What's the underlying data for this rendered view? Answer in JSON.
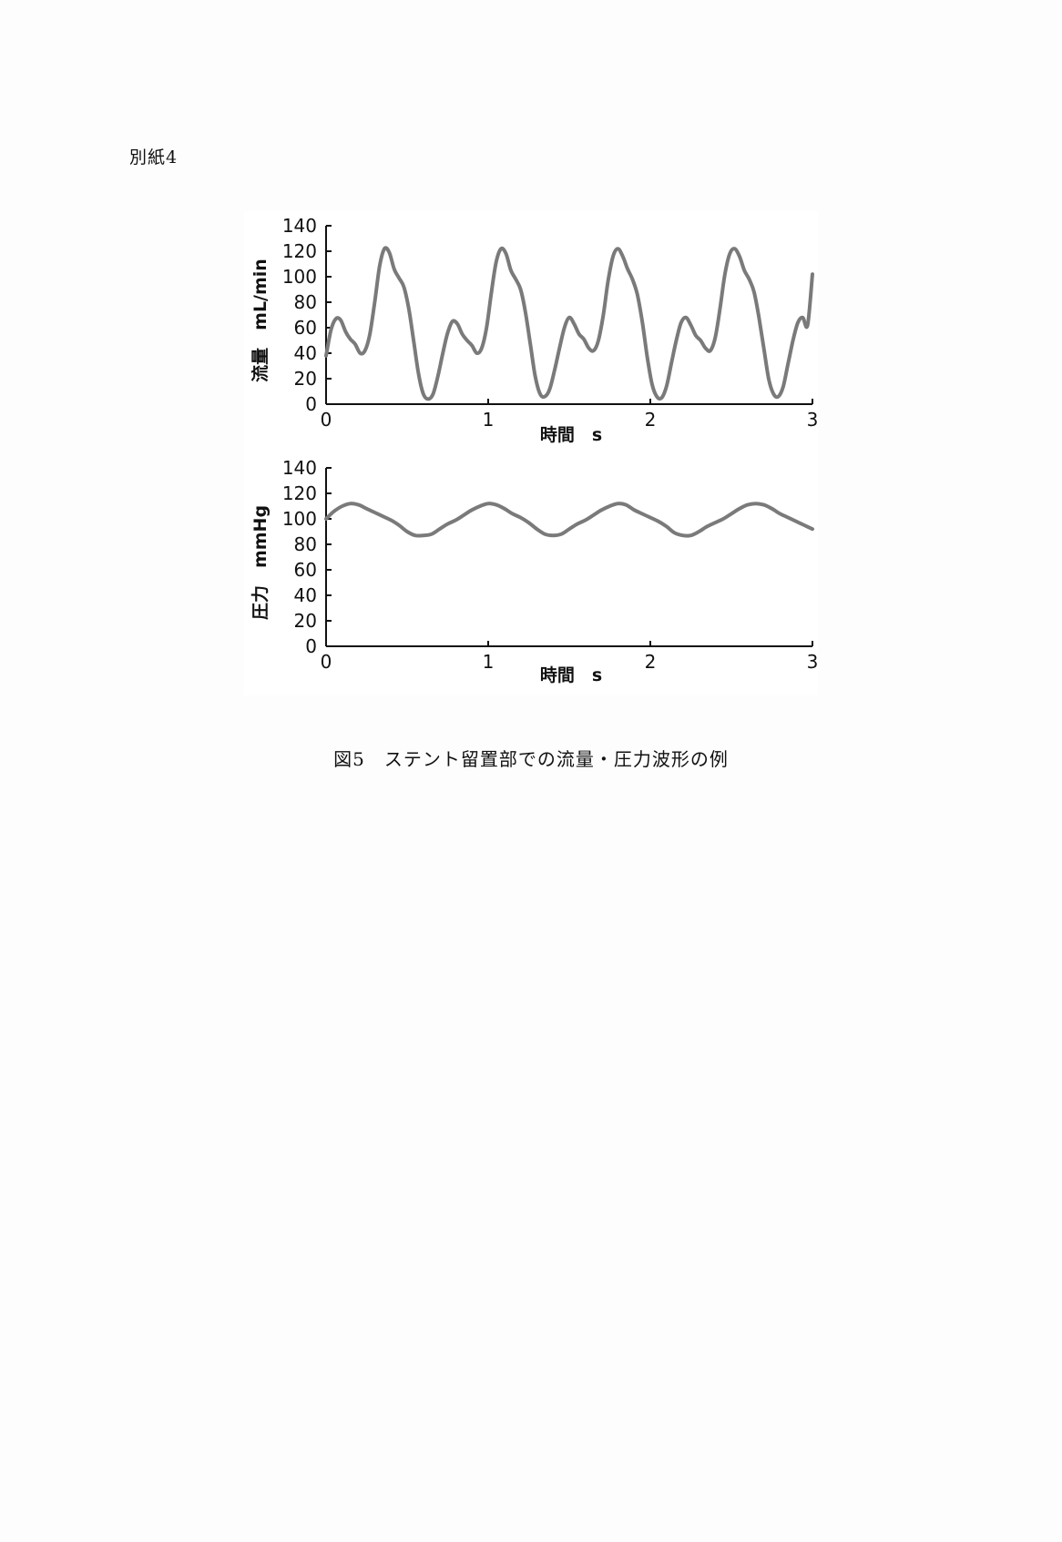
{
  "page": {
    "label": "別紙4"
  },
  "caption": {
    "text": "図5　ステント留置部での流量・圧力波形の例"
  },
  "colors": {
    "line": "#7a7a7a",
    "axis": "#111111"
  },
  "chart_data": [
    {
      "type": "line",
      "title": "",
      "xlabel": "時間　s",
      "ylabel": "流量　mL/min",
      "xlim": [
        0,
        3
      ],
      "ylim": [
        0,
        140
      ],
      "xticks": [
        0,
        1,
        2,
        3
      ],
      "yticks": [
        0,
        20,
        40,
        60,
        80,
        100,
        120,
        140
      ],
      "grid": false,
      "legend": "none",
      "series": [
        {
          "x": [
            0,
            0.03,
            0.06,
            0.09,
            0.12,
            0.15,
            0.18,
            0.21,
            0.24,
            0.27,
            0.3,
            0.33,
            0.36,
            0.39,
            0.42,
            0.45,
            0.48,
            0.51,
            0.54,
            0.57,
            0.6,
            0.63,
            0.66,
            0.69,
            0.72,
            0.75,
            0.78,
            0.81,
            0.84,
            0.87,
            0.9,
            0.93,
            0.96,
            0.99,
            1.02,
            1.05,
            1.08,
            1.11,
            1.14,
            1.17,
            1.2,
            1.23,
            1.26,
            1.29,
            1.32,
            1.35,
            1.38,
            1.41,
            1.44,
            1.47,
            1.5,
            1.53,
            1.56,
            1.59,
            1.62,
            1.65,
            1.68,
            1.71,
            1.74,
            1.77,
            1.8,
            1.83,
            1.86,
            1.89,
            1.92,
            1.95,
            1.98,
            2.01,
            2.04,
            2.07,
            2.1,
            2.13,
            2.16,
            2.19,
            2.22,
            2.25,
            2.28,
            2.31,
            2.34,
            2.37,
            2.4,
            2.43,
            2.46,
            2.49,
            2.52,
            2.55,
            2.58,
            2.61,
            2.64,
            2.67,
            2.7,
            2.73,
            2.76,
            2.79,
            2.82,
            2.85,
            2.88,
            2.91,
            2.94,
            2.97,
            3.0
          ],
          "y": [
            38,
            58,
            67,
            66,
            57,
            51,
            47,
            40,
            42,
            55,
            80,
            108,
            122,
            119,
            106,
            99,
            92,
            75,
            50,
            24,
            8,
            4,
            8,
            22,
            40,
            56,
            65,
            63,
            55,
            50,
            46,
            40,
            44,
            60,
            88,
            112,
            122,
            118,
            105,
            98,
            90,
            72,
            47,
            22,
            8,
            6,
            12,
            27,
            44,
            60,
            68,
            63,
            55,
            51,
            44,
            42,
            50,
            70,
            97,
            116,
            122,
            116,
            106,
            98,
            86,
            65,
            38,
            16,
            6,
            5,
            14,
            32,
            50,
            64,
            68,
            62,
            54,
            50,
            44,
            42,
            52,
            75,
            102,
            118,
            122,
            116,
            105,
            98,
            88,
            68,
            44,
            20,
            8,
            6,
            14,
            32,
            50,
            64,
            68,
            62,
            102
          ]
        }
      ]
    },
    {
      "type": "line",
      "title": "",
      "xlabel": "時間　s",
      "ylabel": "圧力　mmHg",
      "xlim": [
        0,
        3
      ],
      "ylim": [
        0,
        140
      ],
      "xticks": [
        0,
        1,
        2,
        3
      ],
      "yticks": [
        0,
        20,
        40,
        60,
        80,
        100,
        120,
        140
      ],
      "grid": false,
      "legend": "none",
      "series": [
        {
          "x": [
            0,
            0.05,
            0.1,
            0.15,
            0.2,
            0.25,
            0.3,
            0.35,
            0.4,
            0.45,
            0.5,
            0.55,
            0.6,
            0.65,
            0.7,
            0.75,
            0.8,
            0.85,
            0.9,
            0.95,
            1.0,
            1.05,
            1.1,
            1.15,
            1.2,
            1.25,
            1.3,
            1.35,
            1.4,
            1.45,
            1.5,
            1.55,
            1.6,
            1.65,
            1.7,
            1.75,
            1.8,
            1.85,
            1.9,
            1.95,
            2.0,
            2.05,
            2.1,
            2.15,
            2.2,
            2.25,
            2.3,
            2.35,
            2.4,
            2.45,
            2.5,
            2.55,
            2.6,
            2.65,
            2.7,
            2.75,
            2.8,
            2.85,
            2.9,
            2.95,
            3.0
          ],
          "y": [
            100,
            106,
            110,
            112,
            111,
            108,
            105,
            102,
            99,
            95,
            90,
            87,
            87,
            88,
            92,
            96,
            99,
            103,
            107,
            110,
            112,
            111,
            108,
            104,
            101,
            97,
            92,
            88,
            87,
            88,
            92,
            96,
            99,
            103,
            107,
            110,
            112,
            111,
            107,
            104,
            101,
            98,
            94,
            89,
            87,
            87,
            90,
            94,
            97,
            100,
            104,
            108,
            111,
            112,
            111,
            108,
            104,
            101,
            98,
            95,
            92
          ]
        }
      ]
    }
  ]
}
